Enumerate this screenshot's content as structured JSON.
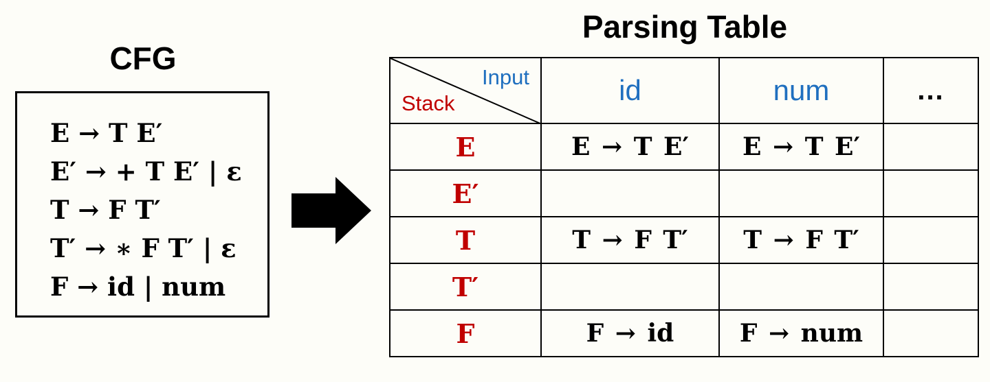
{
  "cfg": {
    "title": "CFG",
    "rules": [
      "E → T E′",
      "E′ → + T E′ | ε",
      "T → F T′",
      "T′ → ∗ F T′ | ε",
      "F → id | num"
    ]
  },
  "table": {
    "title": "Parsing Table",
    "corner": {
      "input_label": "Input",
      "stack_label": "Stack"
    },
    "columns": [
      "id",
      "num",
      "..."
    ],
    "rows": [
      {
        "symbol": "E",
        "cells": [
          "E  →  T E′",
          "E  →  T E′",
          ""
        ]
      },
      {
        "symbol": "E′",
        "cells": [
          "",
          "",
          ""
        ]
      },
      {
        "symbol": "T",
        "cells": [
          "T  → F T′",
          "T  → F T′",
          ""
        ]
      },
      {
        "symbol": "T′",
        "cells": [
          "",
          "",
          ""
        ]
      },
      {
        "symbol": "F",
        "cells": [
          "F  → id",
          "F  → num",
          ""
        ]
      }
    ]
  },
  "colors": {
    "input_blue": "#1f6fbf",
    "stack_red": "#c00000",
    "text": "#000000",
    "background": "#fdfdf8"
  }
}
